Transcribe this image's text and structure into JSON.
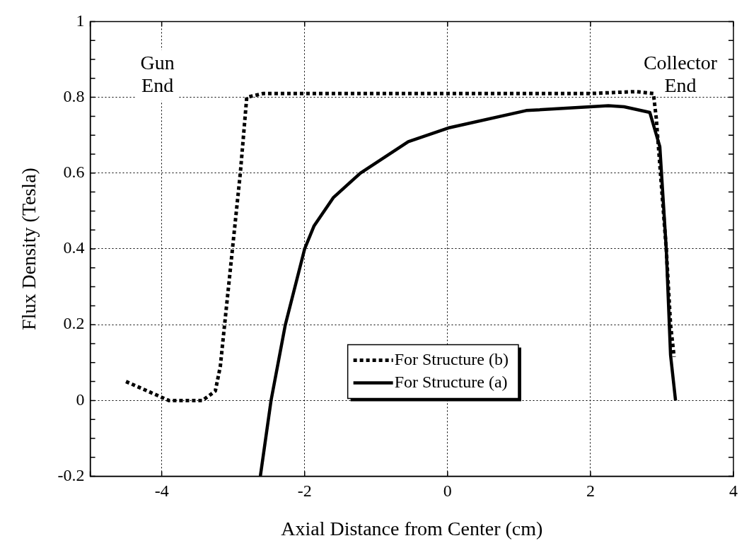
{
  "chart_data": {
    "type": "line",
    "xlabel": "Axial Distance from Center (cm)",
    "ylabel": "Flux Density (Tesla)",
    "xlim": [
      -5,
      4
    ],
    "xticks": [
      {
        "value": -5,
        "label": null
      },
      -4,
      -2,
      0,
      2,
      4
    ],
    "ylim": [
      -0.2,
      1
    ],
    "yticks": [
      -0.2,
      {
        "value": -0.15,
        "label": null
      },
      {
        "value": -0.1,
        "label": null
      },
      {
        "value": -0.05,
        "label": null
      },
      0,
      {
        "value": 0.05,
        "label": null
      },
      {
        "value": 0.1,
        "label": null
      },
      {
        "value": 0.15,
        "label": null
      },
      0.2,
      {
        "value": 0.25,
        "label": null
      },
      {
        "value": 0.3,
        "label": null
      },
      {
        "value": 0.35,
        "label": null
      },
      0.4,
      {
        "value": 0.45,
        "label": null
      },
      {
        "value": 0.5,
        "label": null
      },
      {
        "value": 0.55,
        "label": null
      },
      0.6,
      {
        "value": 0.65,
        "label": null
      },
      {
        "value": 0.7,
        "label": null
      },
      {
        "value": 0.75,
        "label": null
      },
      0.8,
      {
        "value": 0.85,
        "label": null
      },
      {
        "value": 0.9,
        "label": null
      },
      {
        "value": 0.95,
        "label": null
      },
      1
    ],
    "grid": true,
    "legend": "bottom",
    "marker": "none",
    "annotations": [
      "Gun End",
      "Collector End"
    ],
    "series": [
      {
        "name": "For Structure (b)",
        "color": "#000000",
        "line_style": "dotted",
        "x": [
          -4.5,
          -3.9,
          -3.43,
          -3.25,
          -3.18,
          -3.12,
          -3.01,
          -2.9,
          -2.81,
          -2.58,
          -2.0,
          0,
          2.0,
          2.63,
          2.88,
          2.92,
          3.06,
          3.12,
          3.17
        ],
        "values": [
          0.05,
          0,
          0,
          0.025,
          0.09,
          0.2,
          0.4,
          0.6,
          0.8,
          0.81,
          0.81,
          0.81,
          0.81,
          0.815,
          0.81,
          0.745,
          0.4,
          0.2,
          0.115
        ]
      },
      {
        "name": "For Structure (a)",
        "color": "#000000",
        "line_style": "solid",
        "x": [
          -2.62,
          -2.47,
          -2.27,
          -2.0,
          -1.87,
          -1.6,
          -1.22,
          -0.55,
          0.03,
          1.1,
          2.25,
          2.47,
          2.83,
          2.97,
          3.06,
          3.12,
          3.19
        ],
        "values": [
          -0.2,
          0,
          0.2,
          0.4,
          0.46,
          0.535,
          0.6,
          0.683,
          0.72,
          0.765,
          0.778,
          0.775,
          0.76,
          0.67,
          0.4,
          0.12,
          0
        ]
      }
    ]
  }
}
